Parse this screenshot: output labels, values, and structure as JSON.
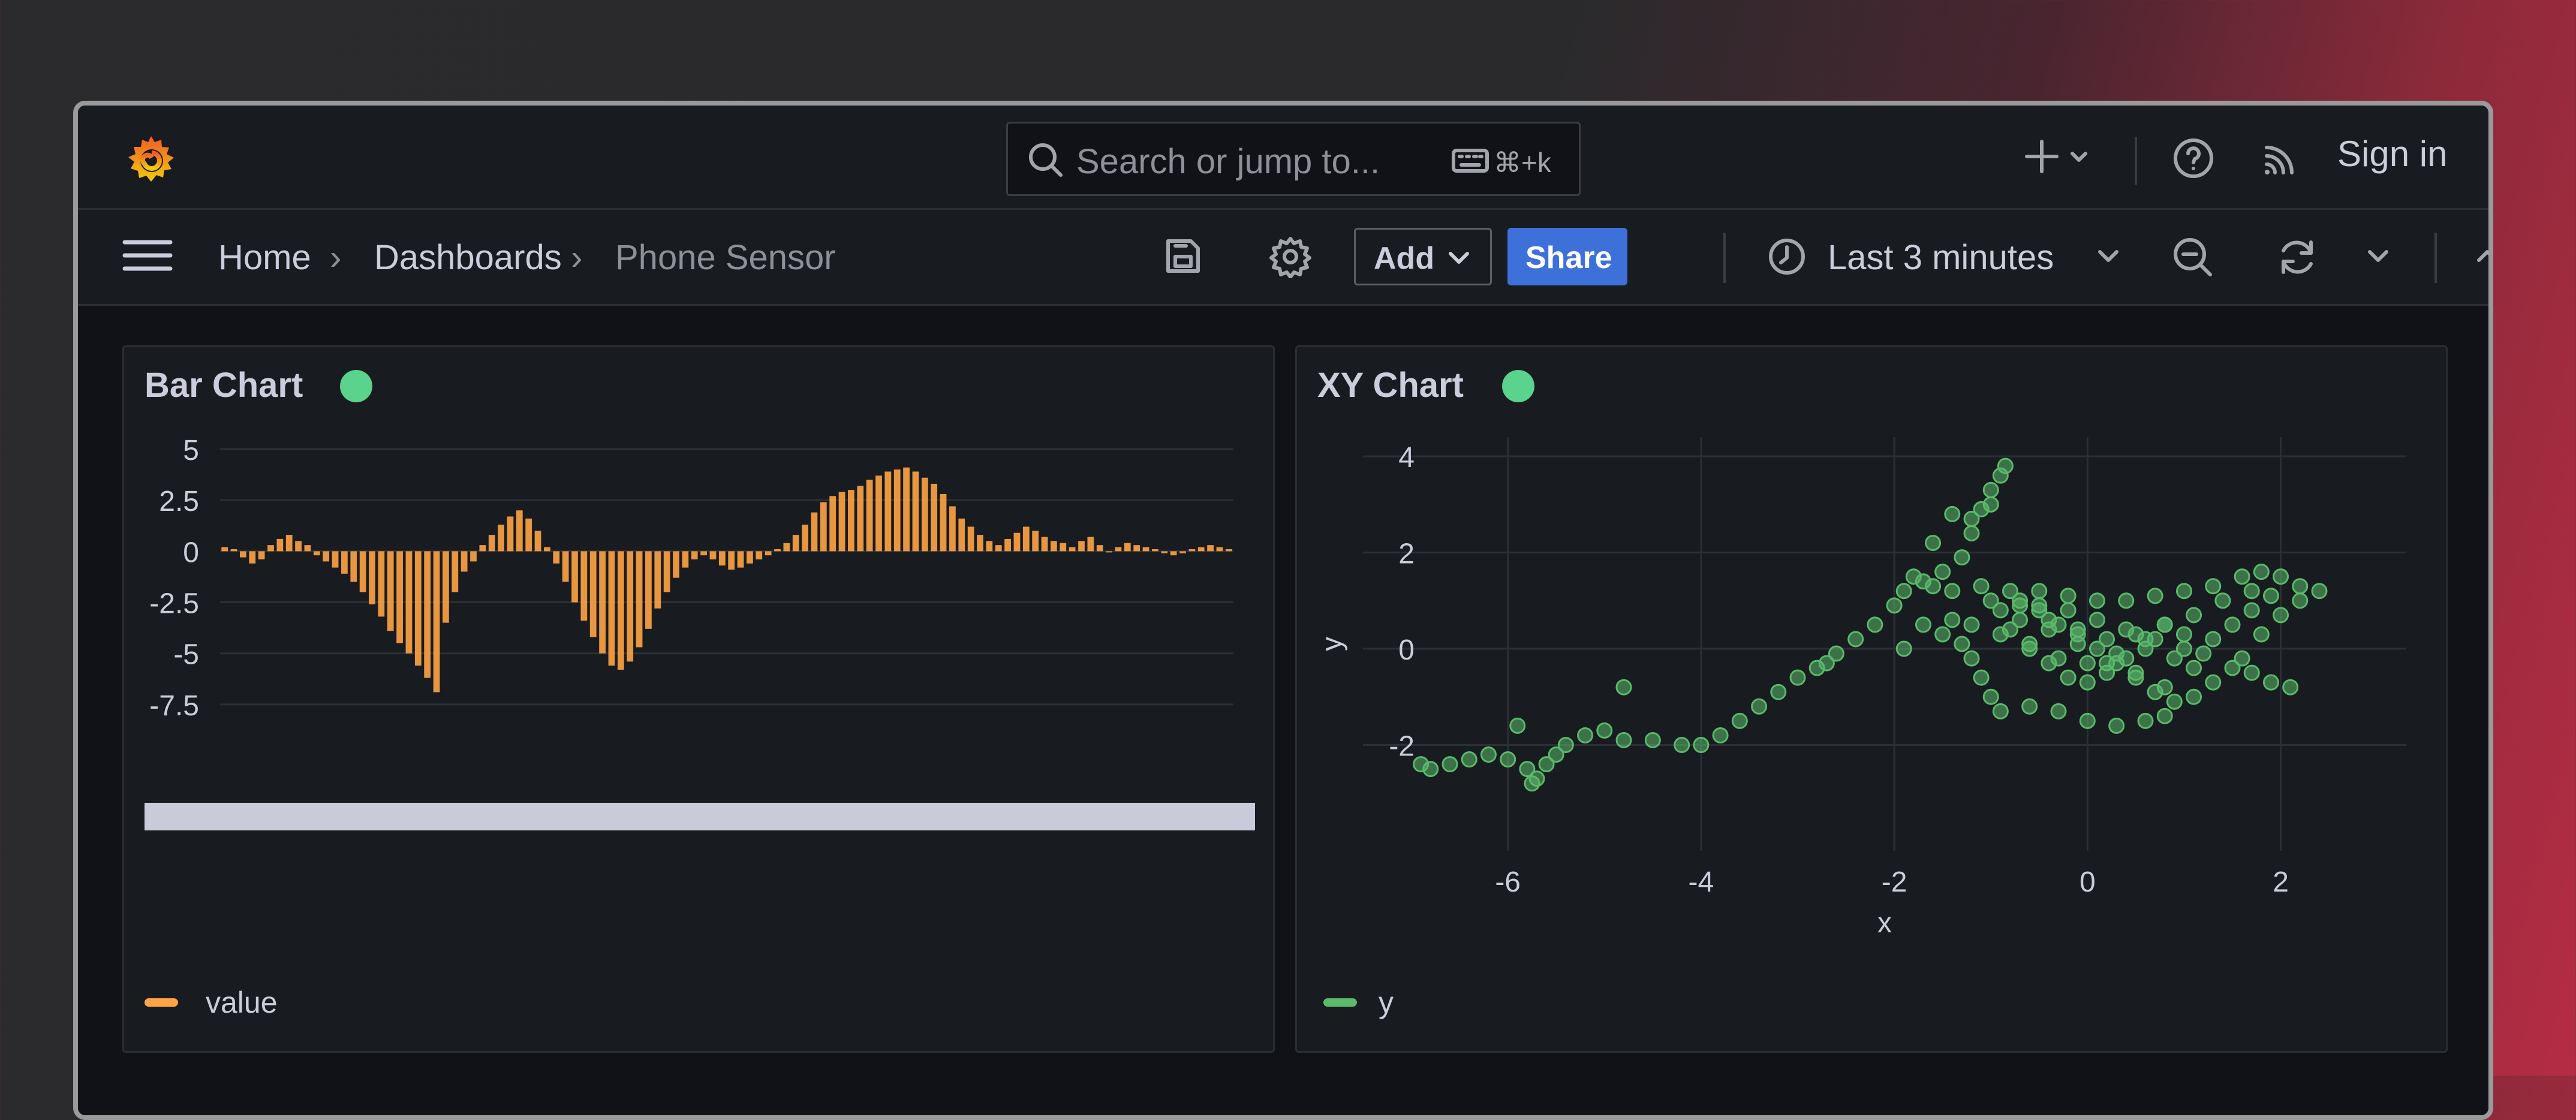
{
  "topbar": {
    "search_placeholder": "Search or jump to...",
    "search_shortcut": "⌘+k",
    "sign_in_label": "Sign in"
  },
  "breadcrumb": {
    "home": "Home",
    "dashboards": "Dashboards",
    "current": "Phone Sensor"
  },
  "toolbar": {
    "add_label": "Add",
    "share_label": "Share",
    "time_range": "Last 3 minutes"
  },
  "colors": {
    "bar_series": "#ffa443",
    "xy_series": "#5ab96a",
    "status_ok": "#5ad48c",
    "share_button": "#3d71d9"
  },
  "panels": [
    {
      "title": "Bar Chart",
      "legend": "value",
      "chart_data": {
        "type": "bar",
        "series": [
          {
            "name": "value"
          }
        ],
        "y_ticks": [
          "5",
          "2.5",
          "0",
          "-2.5",
          "-5",
          "-7.5"
        ],
        "ylim": [
          -8.5,
          5
        ],
        "note_fields": [],
        "values": [
          0.2,
          0.1,
          -0.3,
          -0.6,
          -0.4,
          0.3,
          0.6,
          0.8,
          0.5,
          0.3,
          -0.2,
          -0.5,
          -0.8,
          -1.1,
          -1.5,
          -2.0,
          -2.6,
          -3.2,
          -3.9,
          -4.5,
          -5.0,
          -5.6,
          -6.2,
          -6.9,
          -3.5,
          -2.0,
          -1.0,
          -0.5,
          0.3,
          0.8,
          1.3,
          1.7,
          2.0,
          1.6,
          1.0,
          0.2,
          -0.6,
          -1.5,
          -2.5,
          -3.4,
          -4.2,
          -5.0,
          -5.6,
          -5.8,
          -5.4,
          -4.7,
          -3.8,
          -2.8,
          -2.0,
          -1.3,
          -0.8,
          -0.4,
          -0.2,
          -0.4,
          -0.7,
          -0.9,
          -0.8,
          -0.6,
          -0.4,
          -0.2,
          0.1,
          0.4,
          0.8,
          1.3,
          1.9,
          2.4,
          2.7,
          2.9,
          3.0,
          3.2,
          3.5,
          3.7,
          3.9,
          4.0,
          4.1,
          3.9,
          3.6,
          3.3,
          2.8,
          2.2,
          1.6,
          1.2,
          0.8,
          0.5,
          0.3,
          0.6,
          0.9,
          1.2,
          1.0,
          0.7,
          0.5,
          0.4,
          0.2,
          0.5,
          0.7,
          0.3,
          0.0,
          0.2,
          0.4,
          0.3,
          0.2,
          0.1,
          -0.1,
          -0.2,
          -0.1,
          0.1,
          0.2,
          0.3,
          0.2,
          0.1
        ]
      }
    },
    {
      "title": "XY Chart",
      "legend": "y",
      "chart_data": {
        "type": "scatter",
        "series": [
          {
            "name": "y"
          }
        ],
        "xlabel": "x",
        "ylabel": "y",
        "x_ticks": [
          "-6",
          "-4",
          "-2",
          "0",
          "2"
        ],
        "y_ticks": [
          "4",
          "2",
          "0",
          "-2"
        ],
        "xlim": [
          -7.5,
          3.3
        ],
        "ylim": [
          -4.2,
          4.4
        ],
        "points": [
          [
            -6.9,
            -2.4
          ],
          [
            -6.8,
            -2.5
          ],
          [
            -6.6,
            -2.4
          ],
          [
            -6.4,
            -2.3
          ],
          [
            -6.2,
            -2.2
          ],
          [
            -6.0,
            -2.3
          ],
          [
            -5.8,
            -2.5
          ],
          [
            -5.75,
            -2.8
          ],
          [
            -5.7,
            -2.7
          ],
          [
            -5.6,
            -2.4
          ],
          [
            -5.5,
            -2.2
          ],
          [
            -5.4,
            -2.0
          ],
          [
            -5.2,
            -1.8
          ],
          [
            -5.0,
            -1.7
          ],
          [
            -4.8,
            -1.9
          ],
          [
            -4.5,
            -1.9
          ],
          [
            -4.2,
            -2.0
          ],
          [
            -4.0,
            -2.0
          ],
          [
            -3.8,
            -1.8
          ],
          [
            -3.6,
            -1.5
          ],
          [
            -3.4,
            -1.2
          ],
          [
            -3.2,
            -0.9
          ],
          [
            -3.0,
            -0.6
          ],
          [
            -2.8,
            -0.4
          ],
          [
            -2.6,
            -0.1
          ],
          [
            -2.4,
            0.2
          ],
          [
            -2.2,
            0.5
          ],
          [
            -2.0,
            0.9
          ],
          [
            -1.9,
            1.2
          ],
          [
            -1.7,
            1.4
          ],
          [
            -1.5,
            1.6
          ],
          [
            -1.3,
            1.9
          ],
          [
            -1.2,
            2.4
          ],
          [
            -1.1,
            2.9
          ],
          [
            -1.0,
            3.3
          ],
          [
            -0.9,
            3.6
          ],
          [
            -0.85,
            3.8
          ],
          [
            -1.0,
            3.0
          ],
          [
            -1.2,
            2.7
          ],
          [
            -1.4,
            2.8
          ],
          [
            -1.6,
            2.2
          ],
          [
            -1.8,
            1.5
          ],
          [
            -1.6,
            1.3
          ],
          [
            -1.4,
            1.2
          ],
          [
            -1.1,
            1.3
          ],
          [
            -0.8,
            1.2
          ],
          [
            -0.5,
            1.2
          ],
          [
            -0.2,
            1.1
          ],
          [
            0.1,
            1.0
          ],
          [
            0.4,
            1.0
          ],
          [
            0.7,
            1.1
          ],
          [
            1.0,
            1.2
          ],
          [
            1.3,
            1.3
          ],
          [
            1.6,
            1.5
          ],
          [
            1.8,
            1.6
          ],
          [
            2.0,
            1.5
          ],
          [
            2.2,
            1.3
          ],
          [
            2.4,
            1.2
          ],
          [
            2.2,
            1.0
          ],
          [
            2.0,
            0.7
          ],
          [
            1.8,
            0.3
          ],
          [
            1.6,
            -0.2
          ],
          [
            1.7,
            -0.5
          ],
          [
            1.9,
            -0.7
          ],
          [
            2.1,
            -0.8
          ],
          [
            1.5,
            -0.4
          ],
          [
            1.2,
            -0.1
          ],
          [
            1.0,
            0.3
          ],
          [
            0.8,
            0.5
          ],
          [
            0.6,
            0.2
          ],
          [
            0.4,
            -0.2
          ],
          [
            0.2,
            -0.5
          ],
          [
            0.0,
            -0.7
          ],
          [
            -0.2,
            -0.6
          ],
          [
            -0.4,
            -0.3
          ],
          [
            -0.6,
            0.1
          ],
          [
            -0.8,
            0.4
          ],
          [
            -0.9,
            0.8
          ],
          [
            -0.7,
            1.0
          ],
          [
            -0.5,
            0.8
          ],
          [
            -0.3,
            0.5
          ],
          [
            -0.1,
            0.3
          ],
          [
            0.1,
            0.0
          ],
          [
            0.3,
            -0.3
          ],
          [
            0.5,
            -0.6
          ],
          [
            0.7,
            -0.9
          ],
          [
            0.9,
            -1.1
          ],
          [
            0.8,
            -1.4
          ],
          [
            0.6,
            -1.5
          ],
          [
            0.3,
            -1.6
          ],
          [
            0.0,
            -1.5
          ],
          [
            -0.3,
            -1.3
          ],
          [
            -0.6,
            -1.2
          ],
          [
            -0.9,
            -1.3
          ],
          [
            -1.0,
            -1.0
          ],
          [
            -1.1,
            -0.6
          ],
          [
            -1.2,
            -0.2
          ],
          [
            -1.3,
            0.1
          ],
          [
            -1.5,
            0.3
          ],
          [
            -1.7,
            0.5
          ],
          [
            -1.4,
            0.6
          ],
          [
            -1.2,
            0.5
          ],
          [
            -0.9,
            0.3
          ],
          [
            -0.6,
            0.0
          ],
          [
            -0.3,
            -0.2
          ],
          [
            0.0,
            -0.3
          ],
          [
            0.3,
            -0.1
          ],
          [
            0.6,
            0.0
          ],
          [
            0.9,
            -0.2
          ],
          [
            1.1,
            -0.4
          ],
          [
            1.3,
            -0.7
          ],
          [
            1.1,
            -1.0
          ],
          [
            0.8,
            -0.8
          ],
          [
            0.5,
            -0.5
          ],
          [
            0.2,
            -0.3
          ],
          [
            -0.1,
            0.1
          ],
          [
            -0.4,
            0.4
          ],
          [
            -0.7,
            0.6
          ],
          [
            -0.5,
            0.9
          ],
          [
            -0.2,
            0.8
          ],
          [
            0.1,
            0.6
          ],
          [
            0.4,
            0.4
          ],
          [
            0.7,
            0.2
          ],
          [
            1.0,
            0.0
          ],
          [
            1.3,
            0.2
          ],
          [
            1.5,
            0.5
          ],
          [
            1.7,
            0.8
          ],
          [
            1.9,
            1.1
          ],
          [
            1.7,
            1.2
          ],
          [
            1.4,
            1.0
          ],
          [
            1.1,
            0.7
          ],
          [
            0.8,
            0.5
          ],
          [
            0.5,
            0.3
          ],
          [
            0.2,
            0.2
          ],
          [
            -0.1,
            0.4
          ],
          [
            -0.4,
            0.6
          ],
          [
            -0.7,
            0.9
          ],
          [
            -1.0,
            1.0
          ],
          [
            -1.9,
            0.0
          ],
          [
            -2.7,
            -0.3
          ],
          [
            -5.9,
            -1.6
          ],
          [
            -4.8,
            -0.8
          ]
        ]
      }
    }
  ]
}
